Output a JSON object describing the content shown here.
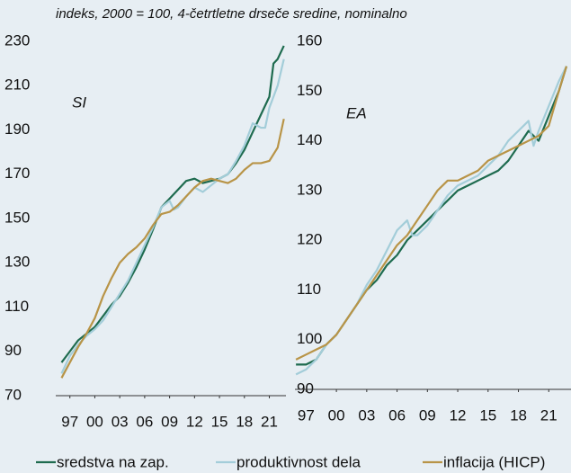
{
  "subtitle": "indeks, 2000 = 100, 4-četrtletne drseče sredine, nominalno",
  "chart_data": [
    {
      "type": "line",
      "label": "SI",
      "xlim": [
        1995.3,
        2023
      ],
      "ylim": [
        70,
        230
      ],
      "xticks": [
        {
          "value": 1997,
          "label": "97"
        },
        {
          "value": 2000,
          "label": "00"
        },
        {
          "value": 2003,
          "label": "03"
        },
        {
          "value": 2006,
          "label": "06"
        },
        {
          "value": 2009,
          "label": "09"
        },
        {
          "value": 2012,
          "label": "12"
        },
        {
          "value": 2015,
          "label": "15"
        },
        {
          "value": 2018,
          "label": "18"
        },
        {
          "value": 2021,
          "label": "21"
        }
      ],
      "yticks": [
        70,
        90,
        110,
        130,
        150,
        170,
        190,
        210,
        230
      ],
      "series": [
        {
          "name": "sredstva na zap.",
          "color": "#1e6b4f",
          "x": [
            1996,
            1997,
            1998,
            1999,
            2000,
            2001,
            2002,
            2003,
            2004,
            2005,
            2006,
            2007,
            2008,
            2009,
            2010,
            2011,
            2012,
            2013,
            2014,
            2015,
            2016,
            2017,
            2018,
            2019,
            2020,
            2021,
            2021.5,
            2022,
            2022.75
          ],
          "values": [
            85,
            90,
            95,
            98,
            101,
            106,
            111,
            115,
            121,
            128,
            136,
            145,
            155,
            159,
            163,
            167,
            168,
            166,
            167,
            168,
            170,
            175,
            181,
            189,
            197,
            205,
            220,
            222,
            228
          ]
        },
        {
          "name": "produktivnost dela",
          "color": "#a3cdd9",
          "x": [
            1996,
            1997,
            1998,
            1999,
            2000,
            2001,
            2002,
            2003,
            2004,
            2005,
            2006,
            2007,
            2008,
            2009,
            2009.5,
            2010,
            2011,
            2012,
            2013,
            2014,
            2015,
            2016,
            2017,
            2018,
            2019,
            2020,
            2020.5,
            2021,
            2022,
            2022.75
          ],
          "values": [
            80,
            88,
            93,
            97,
            100,
            104,
            110,
            116,
            122,
            130,
            138,
            146,
            155,
            158,
            154,
            155,
            160,
            164,
            162,
            165,
            168,
            170,
            176,
            183,
            193,
            191,
            191,
            200,
            210,
            222
          ]
        },
        {
          "name": "inflacija (HICP)",
          "color": "#b89447",
          "x": [
            1996,
            1997,
            1998,
            1999,
            2000,
            2001,
            2002,
            2003,
            2004,
            2005,
            2006,
            2007,
            2008,
            2009,
            2010,
            2011,
            2012,
            2013,
            2014,
            2015,
            2016,
            2017,
            2018,
            2019,
            2020,
            2021,
            2022,
            2022.75
          ],
          "values": [
            78,
            85,
            92,
            98,
            105,
            115,
            123,
            130,
            134,
            137,
            141,
            147,
            152,
            153,
            156,
            160,
            164,
            167,
            168,
            167,
            166,
            168,
            172,
            175,
            175,
            176,
            182,
            195
          ]
        }
      ]
    },
    {
      "type": "line",
      "label": "EA",
      "xlim": [
        1995.9,
        2023.2
      ],
      "ylim": [
        90,
        160
      ],
      "xticks": [
        {
          "value": 1997,
          "label": "97"
        },
        {
          "value": 2000,
          "label": "00"
        },
        {
          "value": 2003,
          "label": "03"
        },
        {
          "value": 2006,
          "label": "06"
        },
        {
          "value": 2009,
          "label": "09"
        },
        {
          "value": 2012,
          "label": "12"
        },
        {
          "value": 2015,
          "label": "15"
        },
        {
          "value": 2018,
          "label": "18"
        },
        {
          "value": 2021,
          "label": "21"
        }
      ],
      "yticks": [
        90,
        100,
        110,
        120,
        130,
        140,
        150,
        160
      ],
      "series": [
        {
          "name": "sredstva na zap.",
          "color": "#1e6b4f",
          "x": [
            1996,
            1997,
            1998,
            1999,
            2000,
            2001,
            2002,
            2003,
            2004,
            2005,
            2006,
            2007,
            2008,
            2009,
            2010,
            2011,
            2012,
            2013,
            2014,
            2015,
            2016,
            2017,
            2018,
            2019,
            2020,
            2021,
            2022,
            2022.75
          ],
          "values": [
            95,
            95,
            96,
            99,
            101,
            104,
            107,
            110,
            112,
            115,
            117,
            120,
            122,
            124,
            126,
            128,
            130,
            131,
            132,
            133,
            134,
            136,
            139,
            142,
            140,
            145,
            150,
            155
          ]
        },
        {
          "name": "produktivnost dela",
          "color": "#a3cdd9",
          "x": [
            1996,
            1997,
            1998,
            1999,
            2000,
            2001,
            2002,
            2003,
            2004,
            2005,
            2006,
            2007,
            2007.5,
            2008,
            2009,
            2010,
            2011,
            2012,
            2013,
            2014,
            2015,
            2016,
            2017,
            2018,
            2019,
            2019.5,
            2020,
            2021,
            2022,
            2022.75
          ],
          "values": [
            93,
            94,
            96,
            99,
            101,
            104,
            107,
            111,
            114,
            118,
            122,
            124,
            121,
            121,
            123,
            126,
            129,
            131,
            132,
            133,
            135,
            137,
            140,
            142,
            144,
            139,
            142,
            147,
            152,
            155
          ]
        },
        {
          "name": "inflacija (HICP)",
          "color": "#b89447",
          "x": [
            1996,
            1997,
            1998,
            1999,
            2000,
            2001,
            2002,
            2003,
            2004,
            2005,
            2006,
            2007,
            2008,
            2009,
            2010,
            2011,
            2012,
            2013,
            2014,
            2015,
            2016,
            2017,
            2018,
            2019,
            2020,
            2021,
            2022,
            2022.75
          ],
          "values": [
            96,
            97,
            98,
            99,
            101,
            104,
            107,
            110,
            113,
            116,
            119,
            121,
            124,
            127,
            130,
            132,
            132,
            133,
            134,
            136,
            137,
            138,
            139,
            140,
            141,
            143,
            150,
            155
          ]
        }
      ]
    }
  ]
}
